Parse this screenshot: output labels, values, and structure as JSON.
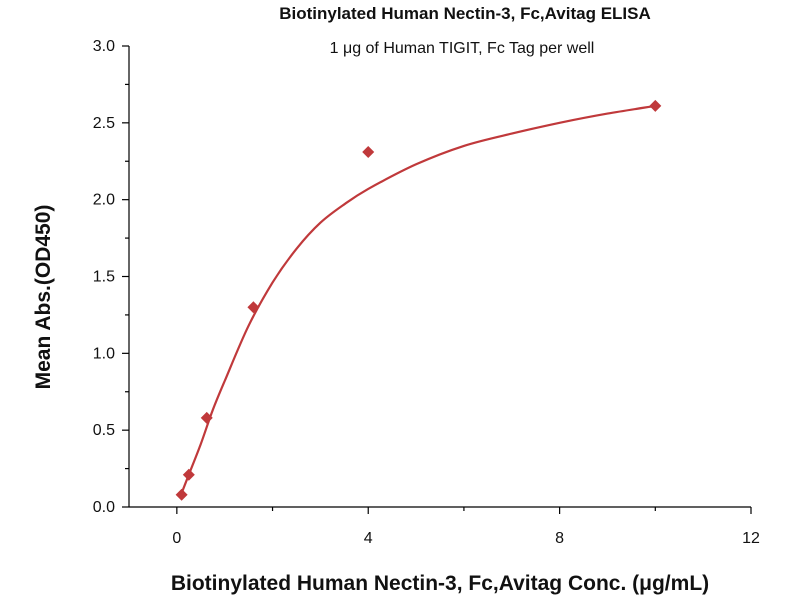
{
  "chart_data": {
    "type": "scatter",
    "title": "Biotinylated Human Nectin-3, Fc,Avitag ELISA",
    "subtitle": "1 μg of Human TIGIT, Fc Tag per well",
    "xlabel": "Biotinylated Human Nectin-3, Fc,Avitag Conc. (μg/mL)",
    "ylabel": "Mean Abs.(OD450)",
    "xlim": [
      -1,
      12
    ],
    "ylim": [
      0,
      3.0
    ],
    "x_ticks": [
      0,
      4,
      8,
      12
    ],
    "x_minor_ticks": [
      2,
      6,
      10
    ],
    "y_ticks": [
      0.0,
      0.5,
      1.0,
      1.5,
      2.0,
      2.5,
      3.0
    ],
    "y_tick_labels": [
      "0.0",
      "0.5",
      "1.0",
      "1.5",
      "2.0",
      "2.5",
      "3.0"
    ],
    "grid": false,
    "color": "#c0393b",
    "series": [
      {
        "points": [
          {
            "x": 0.1,
            "y": 0.08
          },
          {
            "x": 0.25,
            "y": 0.21
          },
          {
            "x": 0.625,
            "y": 0.58
          },
          {
            "x": 1.6,
            "y": 1.3
          },
          {
            "x": 4.0,
            "y": 2.31
          },
          {
            "x": 10.0,
            "y": 2.61
          }
        ],
        "fit": "hill",
        "fit_curve": [
          {
            "x": 0.1,
            "y": 0.09
          },
          {
            "x": 0.25,
            "y": 0.21
          },
          {
            "x": 0.5,
            "y": 0.41
          },
          {
            "x": 0.75,
            "y": 0.63
          },
          {
            "x": 1.0,
            "y": 0.82
          },
          {
            "x": 1.5,
            "y": 1.18
          },
          {
            "x": 2.0,
            "y": 1.46
          },
          {
            "x": 2.5,
            "y": 1.68
          },
          {
            "x": 3.0,
            "y": 1.85
          },
          {
            "x": 3.5,
            "y": 1.97
          },
          {
            "x": 4.0,
            "y": 2.07
          },
          {
            "x": 5.0,
            "y": 2.23
          },
          {
            "x": 6.0,
            "y": 2.35
          },
          {
            "x": 7.0,
            "y": 2.43
          },
          {
            "x": 8.0,
            "y": 2.5
          },
          {
            "x": 9.0,
            "y": 2.56
          },
          {
            "x": 10.0,
            "y": 2.61
          }
        ]
      }
    ]
  }
}
